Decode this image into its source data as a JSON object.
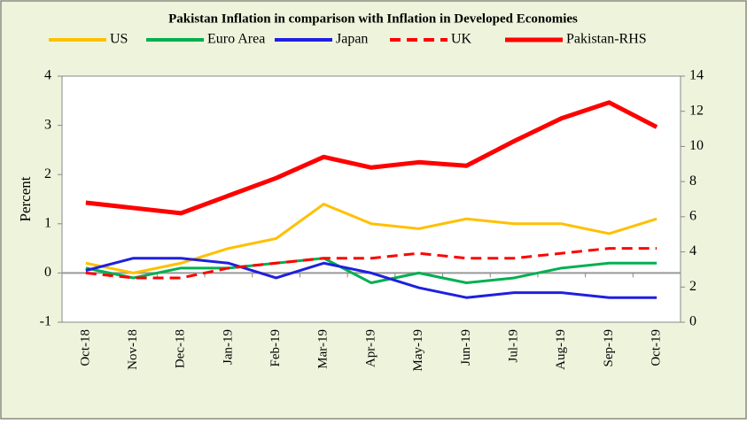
{
  "chart_data": {
    "type": "line",
    "title": "Pakistan Inflation in comparison with Inflation in Developed Economies",
    "y_label": "Percent",
    "categories": [
      "Oct-18",
      "Nov-18",
      "Dec-18",
      "Jan-19",
      "Feb-19",
      "Mar-19",
      "Apr-19",
      "May-19",
      "Jun-19",
      "Jul-19",
      "Aug-19",
      "Sep-19",
      "Oct-19"
    ],
    "series": [
      {
        "name": "US",
        "color": "#ffc000",
        "values": [
          0.2,
          0.0,
          0.2,
          0.5,
          0.7,
          1.4,
          1.0,
          0.9,
          1.1,
          1.0,
          1.0,
          0.8,
          1.1
        ]
      },
      {
        "name": "Euro Area",
        "color": "#00b050",
        "values": [
          0.1,
          -0.1,
          0.1,
          0.1,
          0.2,
          0.3,
          -0.2,
          0.0,
          -0.2,
          -0.1,
          0.1,
          0.2,
          0.2
        ]
      },
      {
        "name": "Japan",
        "color": "#1f1fe0",
        "values": [
          0.05,
          0.3,
          0.3,
          0.2,
          -0.1,
          0.2,
          0.0,
          -0.3,
          -0.5,
          -0.4,
          -0.4,
          -0.5,
          -0.5
        ]
      },
      {
        "name": "UK",
        "color": "#ff0000",
        "style": "dashed",
        "values": [
          0.0,
          -0.1,
          -0.1,
          0.1,
          0.2,
          0.3,
          0.3,
          0.4,
          0.3,
          0.3,
          0.4,
          0.5,
          0.5
        ]
      },
      {
        "name": "Pakistan-RHS",
        "color": "#ff0000",
        "axis": "y2",
        "values": [
          6.8,
          6.5,
          6.2,
          7.2,
          8.2,
          9.4,
          8.8,
          9.1,
          8.9,
          10.3,
          11.6,
          12.5,
          11.1
        ]
      }
    ],
    "ylim": [
      -1,
      4
    ],
    "yticks": [
      -1,
      0,
      1,
      2,
      3,
      4
    ],
    "y2lim": [
      0,
      14
    ],
    "y2ticks": [
      0,
      2,
      4,
      6,
      8,
      10,
      12,
      14
    ],
    "legend": "top"
  }
}
